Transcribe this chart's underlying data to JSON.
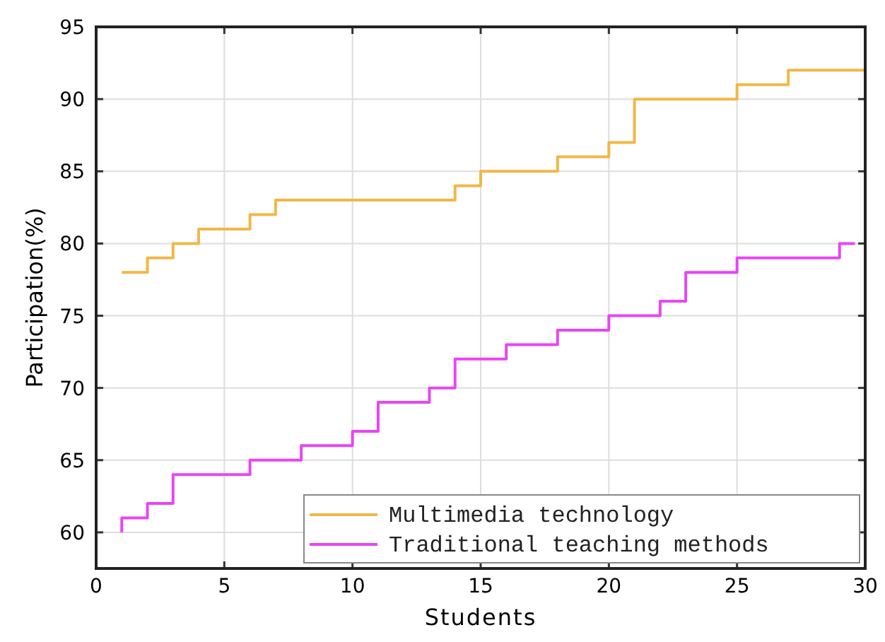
{
  "chart_data": {
    "type": "step",
    "xlabel": "Students",
    "ylabel": "Participation(%)",
    "xlim": [
      0,
      30
    ],
    "xticks": [
      0,
      5,
      10,
      15,
      20,
      25,
      30
    ],
    "ylim": [
      57.5,
      95
    ],
    "yticks": [
      60,
      65,
      70,
      75,
      80,
      85,
      90,
      95
    ],
    "grid": true,
    "legend": "bottom right",
    "line_style": "solid",
    "marker": "none",
    "series": [
      {
        "name": "Multimedia technology",
        "color": "#f0b848",
        "x": [
          1,
          2,
          3,
          4,
          6,
          7,
          14,
          15,
          18,
          20,
          21,
          25,
          27,
          30
        ],
        "values": [
          78,
          79,
          80,
          81,
          82,
          83,
          84,
          85,
          86,
          87,
          90,
          91,
          92,
          92
        ]
      },
      {
        "name": "Traditional teaching methods",
        "color": "#e845f5",
        "x": [
          1,
          1,
          2,
          3,
          6,
          8,
          10,
          11,
          13,
          14,
          16,
          18,
          20,
          22,
          23,
          25,
          29,
          29.6
        ],
        "values": [
          60,
          61,
          62,
          64,
          65,
          66,
          67,
          69,
          70,
          72,
          73,
          74,
          75,
          76,
          78,
          79,
          80,
          80
        ]
      }
    ]
  }
}
